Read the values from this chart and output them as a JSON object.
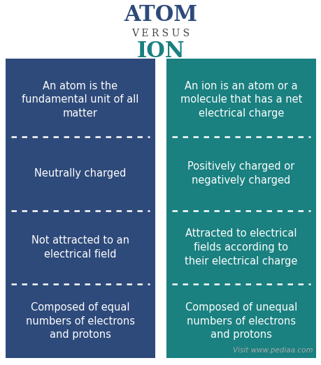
{
  "title1": "ATOM",
  "versus": "V E R S U S",
  "title2": "ION",
  "title1_color": "#2E4A7A",
  "versus_color": "#444444",
  "title2_color": "#1A8080",
  "atom_color": "#2E4A7A",
  "ion_color": "#1A8080",
  "text_color": "#ffffff",
  "bg_color": "#ffffff",
  "watermark": "Visit www.pediaa.com",
  "watermark_color": "#aaaaaa",
  "atom_rows": [
    "An atom is the\nfundamental unit of all\nmatter",
    "Neutrally charged",
    "Not attracted to an\nelectrical field",
    "Composed of equal\nnumbers of electrons\nand protons"
  ],
  "ion_rows": [
    "An ion is an atom or a\nmolecule that has a net\nelectrical charge",
    "Positively charged or\nnegatively charged",
    "Attracted to electrical\nfields according to\ntheir electrical charge",
    "Composed of unequal\nnumbers of electrons\nand protons"
  ],
  "figsize": [
    4.6,
    5.23
  ],
  "dpi": 100
}
